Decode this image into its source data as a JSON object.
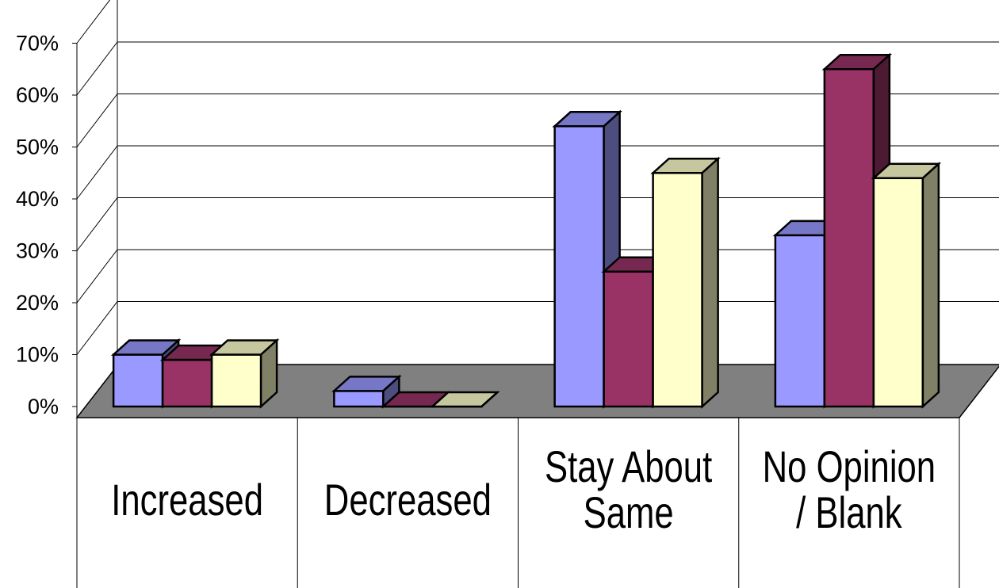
{
  "chart_data": {
    "type": "bar",
    "three_d": true,
    "categories": [
      "Increased",
      "Decreased",
      "Stay About Same",
      "No Opinion / Blank"
    ],
    "category_labels": [
      [
        "Increased"
      ],
      [
        "Decreased"
      ],
      [
        "Stay About",
        "Same"
      ],
      [
        "No Opinion",
        "/ Blank"
      ]
    ],
    "series": [
      {
        "values": [
          10,
          3,
          54,
          33
        ],
        "color": "#9999ff"
      },
      {
        "values": [
          9,
          0,
          26,
          65
        ],
        "color": "#993366"
      },
      {
        "values": [
          10,
          0,
          45,
          44
        ],
        "color": "#ffffcc"
      }
    ],
    "ylim": [
      0,
      70
    ],
    "yticks": [
      "0%",
      "10%",
      "20%",
      "30%",
      "40%",
      "50%",
      "60%",
      "70%"
    ],
    "grid": true,
    "legend": "none",
    "floor_color": "#808080"
  }
}
